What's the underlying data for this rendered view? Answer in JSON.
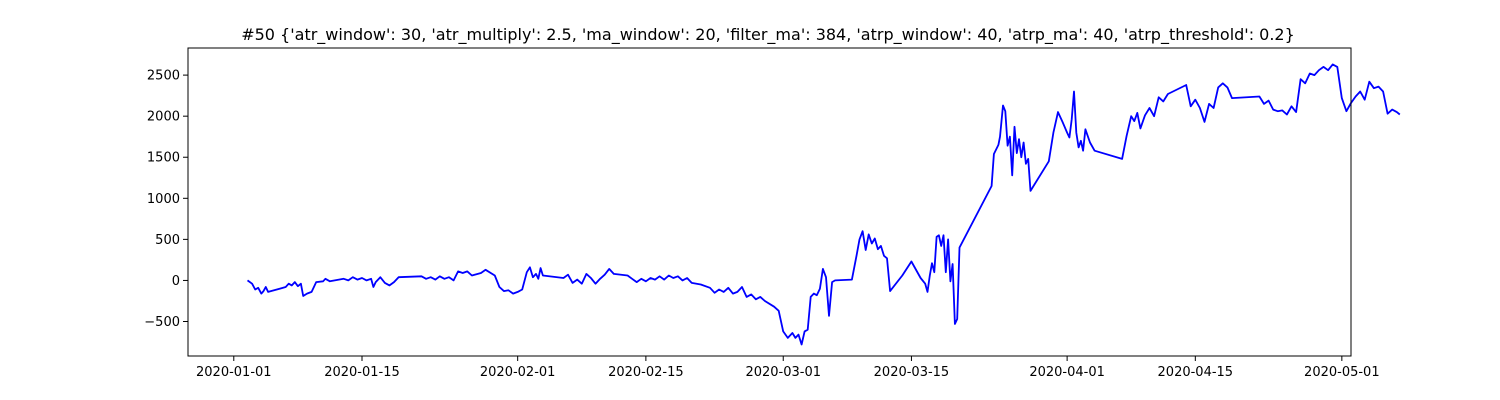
{
  "chart_data": {
    "type": "line",
    "title": "#50 {'atr_window': 30, 'atr_multiply': 2.5, 'ma_window': 20, 'filter_ma': 384, 'atrp_window': 40, 'atrp_ma': 40, 'atrp_threshold': 0.2}",
    "xlabel": "",
    "ylabel": "",
    "xlim": [
      "2019-12-27",
      "2020-05-02"
    ],
    "ylim": [
      -920,
      2830
    ],
    "x_ticks": [
      "2020-01-01",
      "2020-01-15",
      "2020-02-01",
      "2020-02-15",
      "2020-03-01",
      "2020-03-15",
      "2020-04-01",
      "2020-04-15",
      "2020-05-01"
    ],
    "y_ticks": [
      -500,
      0,
      500,
      1000,
      1500,
      2000,
      2500
    ],
    "grid": false,
    "legend": "none",
    "series": [
      {
        "color": "#0000ff",
        "points": [
          [
            "2020-01-02T12:00",
            0
          ],
          [
            "2020-01-03T00:00",
            -40
          ],
          [
            "2020-01-03T08:00",
            -110
          ],
          [
            "2020-01-03T16:00",
            -90
          ],
          [
            "2020-01-04T00:00",
            -160
          ],
          [
            "2020-01-04T06:00",
            -130
          ],
          [
            "2020-01-04T12:00",
            -80
          ],
          [
            "2020-01-04T18:00",
            -140
          ],
          [
            "2020-01-06T00:00",
            -100
          ],
          [
            "2020-01-06T16:00",
            -80
          ],
          [
            "2020-01-07T00:00",
            -40
          ],
          [
            "2020-01-07T08:00",
            -60
          ],
          [
            "2020-01-07T16:00",
            -20
          ],
          [
            "2020-01-08T00:00",
            -70
          ],
          [
            "2020-01-08T08:00",
            -40
          ],
          [
            "2020-01-08T14:00",
            -190
          ],
          [
            "2020-01-09T00:00",
            -160
          ],
          [
            "2020-01-09T12:00",
            -140
          ],
          [
            "2020-01-10T00:00",
            -20
          ],
          [
            "2020-01-10T18:00",
            -10
          ],
          [
            "2020-01-11T00:00",
            20
          ],
          [
            "2020-01-11T12:00",
            -10
          ],
          [
            "2020-01-13T00:00",
            20
          ],
          [
            "2020-01-13T12:00",
            0
          ],
          [
            "2020-01-14T00:00",
            40
          ],
          [
            "2020-01-14T12:00",
            10
          ],
          [
            "2020-01-15T00:00",
            30
          ],
          [
            "2020-01-15T12:00",
            0
          ],
          [
            "2020-01-16T00:00",
            20
          ],
          [
            "2020-01-16T06:00",
            -80
          ],
          [
            "2020-01-16T12:00",
            -20
          ],
          [
            "2020-01-17T00:00",
            40
          ],
          [
            "2020-01-17T12:00",
            -30
          ],
          [
            "2020-01-18T00:00",
            -60
          ],
          [
            "2020-01-18T12:00",
            -20
          ],
          [
            "2020-01-19T00:00",
            40
          ],
          [
            "2020-01-21T12:00",
            50
          ],
          [
            "2020-01-22T00:00",
            20
          ],
          [
            "2020-01-22T12:00",
            40
          ],
          [
            "2020-01-23T00:00",
            10
          ],
          [
            "2020-01-23T12:00",
            50
          ],
          [
            "2020-01-24T00:00",
            20
          ],
          [
            "2020-01-24T12:00",
            40
          ],
          [
            "2020-01-25T00:00",
            0
          ],
          [
            "2020-01-25T12:00",
            110
          ],
          [
            "2020-01-26T00:00",
            90
          ],
          [
            "2020-01-26T12:00",
            110
          ],
          [
            "2020-01-27T00:00",
            60
          ],
          [
            "2020-01-28T00:00",
            90
          ],
          [
            "2020-01-28T12:00",
            130
          ],
          [
            "2020-01-29T12:00",
            60
          ],
          [
            "2020-01-30T00:00",
            -80
          ],
          [
            "2020-01-30T12:00",
            -130
          ],
          [
            "2020-01-31T00:00",
            -120
          ],
          [
            "2020-01-31T12:00",
            -160
          ],
          [
            "2020-02-01T00:00",
            -140
          ],
          [
            "2020-02-01T12:00",
            -110
          ],
          [
            "2020-02-02T00:00",
            100
          ],
          [
            "2020-02-02T08:00",
            160
          ],
          [
            "2020-02-02T16:00",
            40
          ],
          [
            "2020-02-03T00:00",
            80
          ],
          [
            "2020-02-03T06:00",
            20
          ],
          [
            "2020-02-03T12:00",
            150
          ],
          [
            "2020-02-03T18:00",
            60
          ],
          [
            "2020-02-06T00:00",
            30
          ],
          [
            "2020-02-06T12:00",
            70
          ],
          [
            "2020-02-07T00:00",
            -30
          ],
          [
            "2020-02-07T12:00",
            10
          ],
          [
            "2020-02-08T00:00",
            -40
          ],
          [
            "2020-02-08T12:00",
            80
          ],
          [
            "2020-02-09T00:00",
            30
          ],
          [
            "2020-02-09T12:00",
            -40
          ],
          [
            "2020-02-10T00:00",
            20
          ],
          [
            "2020-02-10T12:00",
            70
          ],
          [
            "2020-02-11T00:00",
            140
          ],
          [
            "2020-02-11T12:00",
            80
          ],
          [
            "2020-02-13T00:00",
            60
          ],
          [
            "2020-02-13T12:00",
            20
          ],
          [
            "2020-02-14T00:00",
            -20
          ],
          [
            "2020-02-14T12:00",
            20
          ],
          [
            "2020-02-15T00:00",
            -10
          ],
          [
            "2020-02-15T12:00",
            30
          ],
          [
            "2020-02-16T00:00",
            10
          ],
          [
            "2020-02-16T12:00",
            50
          ],
          [
            "2020-02-17T00:00",
            10
          ],
          [
            "2020-02-17T12:00",
            60
          ],
          [
            "2020-02-18T00:00",
            30
          ],
          [
            "2020-02-18T12:00",
            50
          ],
          [
            "2020-02-19T00:00",
            0
          ],
          [
            "2020-02-19T12:00",
            30
          ],
          [
            "2020-02-20T00:00",
            -30
          ],
          [
            "2020-02-21T00:00",
            -50
          ],
          [
            "2020-02-22T00:00",
            -90
          ],
          [
            "2020-02-22T12:00",
            -150
          ],
          [
            "2020-02-23T00:00",
            -110
          ],
          [
            "2020-02-23T12:00",
            -140
          ],
          [
            "2020-02-24T00:00",
            -90
          ],
          [
            "2020-02-24T12:00",
            -160
          ],
          [
            "2020-02-25T00:00",
            -140
          ],
          [
            "2020-02-25T12:00",
            -80
          ],
          [
            "2020-02-26T00:00",
            -200
          ],
          [
            "2020-02-26T12:00",
            -170
          ],
          [
            "2020-02-27T00:00",
            -230
          ],
          [
            "2020-02-27T12:00",
            -200
          ],
          [
            "2020-02-28T00:00",
            -250
          ],
          [
            "2020-02-29T00:00",
            -320
          ],
          [
            "2020-02-29T12:00",
            -370
          ],
          [
            "2020-03-01T00:00",
            -620
          ],
          [
            "2020-03-01T12:00",
            -700
          ],
          [
            "2020-03-02T00:00",
            -640
          ],
          [
            "2020-03-02T08:00",
            -700
          ],
          [
            "2020-03-02T16:00",
            -660
          ],
          [
            "2020-03-03T00:00",
            -780
          ],
          [
            "2020-03-03T08:00",
            -620
          ],
          [
            "2020-03-03T16:00",
            -600
          ],
          [
            "2020-03-04T00:00",
            -200
          ],
          [
            "2020-03-04T08:00",
            -160
          ],
          [
            "2020-03-04T16:00",
            -180
          ],
          [
            "2020-03-05T00:00",
            -100
          ],
          [
            "2020-03-05T08:00",
            140
          ],
          [
            "2020-03-05T16:00",
            40
          ],
          [
            "2020-03-06T00:00",
            -430
          ],
          [
            "2020-03-06T08:00",
            -20
          ],
          [
            "2020-03-06T16:00",
            0
          ],
          [
            "2020-03-08T12:00",
            10
          ],
          [
            "2020-03-09T00:00",
            300
          ],
          [
            "2020-03-09T08:00",
            500
          ],
          [
            "2020-03-09T16:00",
            600
          ],
          [
            "2020-03-10T00:00",
            370
          ],
          [
            "2020-03-10T08:00",
            560
          ],
          [
            "2020-03-10T16:00",
            450
          ],
          [
            "2020-03-11T00:00",
            510
          ],
          [
            "2020-03-11T08:00",
            380
          ],
          [
            "2020-03-11T16:00",
            420
          ],
          [
            "2020-03-12T00:00",
            300
          ],
          [
            "2020-03-12T08:00",
            270
          ],
          [
            "2020-03-12T16:00",
            -130
          ],
          [
            "2020-03-14T00:00",
            60
          ],
          [
            "2020-03-15T00:00",
            230
          ],
          [
            "2020-03-16T00:00",
            30
          ],
          [
            "2020-03-16T12:00",
            -40
          ],
          [
            "2020-03-16T18:00",
            -140
          ],
          [
            "2020-03-17T00:00",
            60
          ],
          [
            "2020-03-17T06:00",
            210
          ],
          [
            "2020-03-17T12:00",
            100
          ],
          [
            "2020-03-17T18:00",
            530
          ],
          [
            "2020-03-18T00:00",
            550
          ],
          [
            "2020-03-18T06:00",
            420
          ],
          [
            "2020-03-18T12:00",
            550
          ],
          [
            "2020-03-18T18:00",
            100
          ],
          [
            "2020-03-19T00:00",
            500
          ],
          [
            "2020-03-19T06:00",
            -10
          ],
          [
            "2020-03-19T12:00",
            200
          ],
          [
            "2020-03-19T18:00",
            -530
          ],
          [
            "2020-03-20T00:00",
            -470
          ],
          [
            "2020-03-20T06:00",
            400
          ],
          [
            "2020-03-23T18:00",
            1150
          ],
          [
            "2020-03-24T00:00",
            1540
          ],
          [
            "2020-03-24T12:00",
            1650
          ],
          [
            "2020-03-24T16:00",
            1750
          ],
          [
            "2020-03-25T00:00",
            2130
          ],
          [
            "2020-03-25T06:00",
            2060
          ],
          [
            "2020-03-25T12:00",
            1640
          ],
          [
            "2020-03-25T18:00",
            1750
          ],
          [
            "2020-03-26T00:00",
            1280
          ],
          [
            "2020-03-26T06:00",
            1870
          ],
          [
            "2020-03-26T12:00",
            1550
          ],
          [
            "2020-03-26T18:00",
            1720
          ],
          [
            "2020-03-27T00:00",
            1500
          ],
          [
            "2020-03-27T06:00",
            1680
          ],
          [
            "2020-03-27T12:00",
            1420
          ],
          [
            "2020-03-27T18:00",
            1480
          ],
          [
            "2020-03-28T00:00",
            1090
          ],
          [
            "2020-03-30T00:00",
            1450
          ],
          [
            "2020-03-30T12:00",
            1800
          ],
          [
            "2020-03-31T00:00",
            2050
          ],
          [
            "2020-03-31T12:00",
            1930
          ],
          [
            "2020-04-01T00:00",
            1800
          ],
          [
            "2020-04-01T06:00",
            1740
          ],
          [
            "2020-04-01T12:00",
            1960
          ],
          [
            "2020-04-01T18:00",
            2300
          ],
          [
            "2020-04-02T00:00",
            1800
          ],
          [
            "2020-04-02T06:00",
            1620
          ],
          [
            "2020-04-02T12:00",
            1700
          ],
          [
            "2020-04-02T18:00",
            1580
          ],
          [
            "2020-04-03T00:00",
            1840
          ],
          [
            "2020-04-03T12:00",
            1680
          ],
          [
            "2020-04-04T00:00",
            1580
          ],
          [
            "2020-04-07T00:00",
            1480
          ],
          [
            "2020-04-07T12:00",
            1760
          ],
          [
            "2020-04-08T00:00",
            2000
          ],
          [
            "2020-04-08T08:00",
            1940
          ],
          [
            "2020-04-08T16:00",
            2040
          ],
          [
            "2020-04-09T00:00",
            1850
          ],
          [
            "2020-04-09T12:00",
            2010
          ],
          [
            "2020-04-10T00:00",
            2100
          ],
          [
            "2020-04-10T12:00",
            2000
          ],
          [
            "2020-04-11T00:00",
            2230
          ],
          [
            "2020-04-11T12:00",
            2180
          ],
          [
            "2020-04-12T00:00",
            2270
          ],
          [
            "2020-04-14T00:00",
            2380
          ],
          [
            "2020-04-14T12:00",
            2120
          ],
          [
            "2020-04-15T00:00",
            2200
          ],
          [
            "2020-04-15T12:00",
            2100
          ],
          [
            "2020-04-16T00:00",
            1930
          ],
          [
            "2020-04-16T12:00",
            2150
          ],
          [
            "2020-04-17T00:00",
            2100
          ],
          [
            "2020-04-17T12:00",
            2350
          ],
          [
            "2020-04-18T00:00",
            2400
          ],
          [
            "2020-04-18T12:00",
            2350
          ],
          [
            "2020-04-19T00:00",
            2220
          ],
          [
            "2020-04-22T00:00",
            2240
          ],
          [
            "2020-04-22T12:00",
            2150
          ],
          [
            "2020-04-23T00:00",
            2190
          ],
          [
            "2020-04-23T12:00",
            2080
          ],
          [
            "2020-04-24T00:00",
            2060
          ],
          [
            "2020-04-24T12:00",
            2070
          ],
          [
            "2020-04-25T00:00",
            2020
          ],
          [
            "2020-04-25T12:00",
            2120
          ],
          [
            "2020-04-26T00:00",
            2050
          ],
          [
            "2020-04-26T12:00",
            2450
          ],
          [
            "2020-04-27T00:00",
            2400
          ],
          [
            "2020-04-27T12:00",
            2520
          ],
          [
            "2020-04-28T00:00",
            2500
          ],
          [
            "2020-04-28T12:00",
            2560
          ],
          [
            "2020-04-29T00:00",
            2600
          ],
          [
            "2020-04-29T12:00",
            2560
          ],
          [
            "2020-04-30T00:00",
            2630
          ],
          [
            "2020-04-30T12:00",
            2600
          ],
          [
            "2020-05-01T00:00",
            2220
          ],
          [
            "2020-05-01T12:00",
            2060
          ],
          [
            "2020-05-02T00:00",
            2160
          ],
          [
            "2020-05-02T12:00",
            2240
          ],
          [
            "2020-05-03T00:00",
            2300
          ],
          [
            "2020-05-03T12:00",
            2200
          ],
          [
            "2020-05-04T00:00",
            2420
          ],
          [
            "2020-05-04T12:00",
            2340
          ],
          [
            "2020-05-05T00:00",
            2360
          ],
          [
            "2020-05-05T12:00",
            2300
          ],
          [
            "2020-05-06T00:00",
            2030
          ],
          [
            "2020-05-06T12:00",
            2080
          ],
          [
            "2020-05-07T00:00",
            2050
          ],
          [
            "2020-05-07T08:00",
            2020
          ]
        ]
      }
    ]
  }
}
